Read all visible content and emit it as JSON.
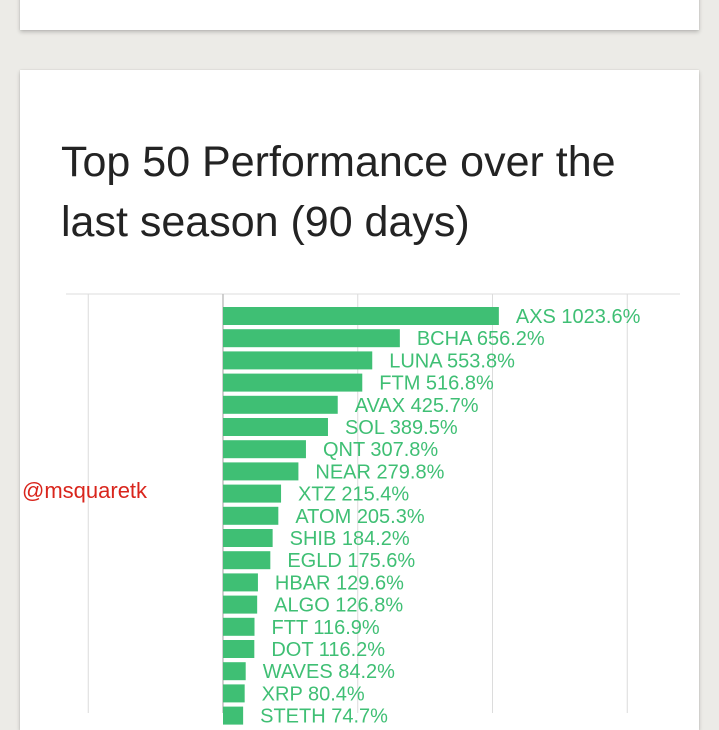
{
  "title": "Top 50 Performance over the last season (90 days)",
  "watermark": "@msquaretk",
  "colors": {
    "bar": "#3fbf74",
    "label": "#3fbf74",
    "grid": "#dcdcdc",
    "axis": "#bdbdbd"
  },
  "chart_data": {
    "type": "bar",
    "orientation": "horizontal",
    "title": "Top 50 Performance over the last season (90 days)",
    "unit": "%",
    "grid": true,
    "xlim": [
      -500,
      1500
    ],
    "categories": [
      "AXS",
      "BCHA",
      "LUNA",
      "FTM",
      "AVAX",
      "SOL",
      "QNT",
      "NEAR",
      "XTZ",
      "ATOM",
      "SHIB",
      "EGLD",
      "HBAR",
      "ALGO",
      "FTT",
      "DOT",
      "WAVES",
      "XRP",
      "STETH"
    ],
    "values": [
      1023.6,
      656.2,
      553.8,
      516.8,
      425.7,
      389.5,
      307.8,
      279.8,
      215.4,
      205.3,
      184.2,
      175.6,
      129.6,
      126.8,
      116.9,
      116.2,
      84.2,
      80.4,
      74.7
    ],
    "labels": [
      "AXS 1023.6%",
      "BCHA 656.2%",
      "LUNA 553.8%",
      "FTM 516.8%",
      "AVAX 425.7%",
      "SOL 389.5%",
      "QNT 307.8%",
      "NEAR 279.8%",
      "XTZ 215.4%",
      "ATOM 205.3%",
      "SHIB 184.2%",
      "EGLD 175.6%",
      "HBAR 129.6%",
      "ALGO 126.8%",
      "FTT 116.9%",
      "DOT 116.2%",
      "WAVES 84.2%",
      "XRP 80.4%",
      "STETH 74.7%"
    ]
  }
}
